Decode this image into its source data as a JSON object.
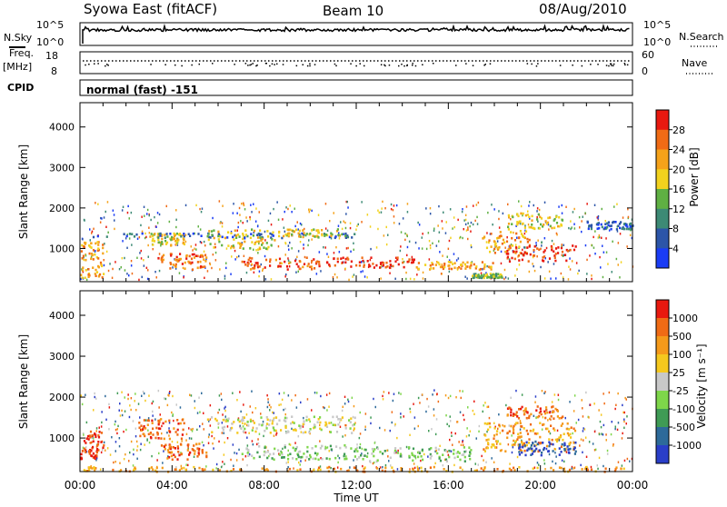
{
  "header": {
    "station": "Syowa East (fitACF)",
    "beam": "Beam 10",
    "date": "08/Aug/2010"
  },
  "top_panels": {
    "nsky_label": "N.Sky",
    "nsky_max": "10^5",
    "nsky_min": "10^0",
    "nsearch_label": "N.Search",
    "nsearch_max": "10^5",
    "nsearch_min": "10^0",
    "freq_label": "Freq.",
    "freq_unit": "[MHz]",
    "freq_max": "18",
    "freq_min": "8",
    "nave_label": "Nave",
    "nave_max": "60",
    "nave_min": "0",
    "cpid_label": "CPID",
    "cpid_value": "normal (fast) -151"
  },
  "chart_data": [
    {
      "type": "heatmap",
      "panel": "power",
      "ylabel": "Slant Range [km]",
      "xlabel": "Time UT",
      "xlim": [
        "00:00",
        "24:00"
      ],
      "ylim": [
        180,
        4600
      ],
      "x_ticks": [
        "00:00",
        "04:00",
        "08:00",
        "12:00",
        "16:00",
        "20:00",
        "00:00"
      ],
      "y_ticks": [
        1000,
        2000,
        3000,
        4000
      ],
      "colorbar": {
        "label": "Power [dB]",
        "ticks": [
          "4",
          "8",
          "12",
          "16",
          "20",
          "24",
          "28"
        ],
        "colors": [
          "#1a3cf5",
          "#2c55a8",
          "#3d8a75",
          "#5fb043",
          "#f2d21e",
          "#f5a21a",
          "#f06b15",
          "#e8190f"
        ]
      },
      "regions": [
        {
          "t0": 0.0,
          "t1": 1.0,
          "r0": 300,
          "r1": 1200,
          "level": 5
        },
        {
          "t0": 3.0,
          "t1": 4.5,
          "r0": 1100,
          "r1": 1400,
          "level": 4
        },
        {
          "t0": 3.3,
          "t1": 5.5,
          "r0": 500,
          "r1": 900,
          "level": 6
        },
        {
          "t0": 0.5,
          "t1": 12.0,
          "r0": 1280,
          "r1": 1400,
          "level": 1
        },
        {
          "t0": 5.5,
          "t1": 8.5,
          "r0": 1000,
          "r1": 1500,
          "level": 4
        },
        {
          "t0": 8.5,
          "t1": 11.5,
          "r0": 1300,
          "r1": 1500,
          "level": 4
        },
        {
          "t0": 7.0,
          "t1": 10.5,
          "r0": 500,
          "r1": 800,
          "level": 6
        },
        {
          "t0": 10.5,
          "t1": 14.5,
          "r0": 550,
          "r1": 800,
          "level": 7
        },
        {
          "t0": 14.5,
          "t1": 18.0,
          "r0": 500,
          "r1": 700,
          "level": 5
        },
        {
          "t0": 17.0,
          "t1": 18.3,
          "r0": 300,
          "r1": 400,
          "level": 3
        },
        {
          "t0": 17.5,
          "t1": 19.5,
          "r0": 900,
          "r1": 1500,
          "level": 5
        },
        {
          "t0": 18.5,
          "t1": 21.5,
          "r0": 700,
          "r1": 1100,
          "level": 7
        },
        {
          "t0": 18.5,
          "t1": 21.0,
          "r0": 1500,
          "r1": 1900,
          "level": 4
        },
        {
          "t0": 22.0,
          "t1": 24.0,
          "r0": 1500,
          "r1": 1700,
          "level": 1
        }
      ]
    },
    {
      "type": "heatmap",
      "panel": "velocity",
      "ylabel": "Slant Range [km]",
      "xlabel": "Time UT",
      "xlim": [
        "00:00",
        "24:00"
      ],
      "ylim": [
        180,
        4600
      ],
      "x_ticks": [
        "00:00",
        "04:00",
        "08:00",
        "12:00",
        "16:00",
        "20:00",
        "00:00"
      ],
      "y_ticks": [
        1000,
        2000,
        3000,
        4000
      ],
      "colorbar": {
        "label": "Velocity [m s⁻¹]",
        "ticks": [
          "1000",
          "500",
          "100",
          "25",
          "-25",
          "-100",
          "-500",
          "-1000"
        ],
        "colors": [
          "#2a3ec8",
          "#2d6a9a",
          "#3f9b55",
          "#7ed64a",
          "#c8c8c8",
          "#f5c81e",
          "#f59a1a",
          "#f06b15",
          "#e8190f"
        ]
      },
      "regions": [
        {
          "t0": 0.0,
          "t1": 1.0,
          "r0": 500,
          "r1": 1200,
          "level": 8
        },
        {
          "t0": 2.5,
          "t1": 4.5,
          "r0": 1000,
          "r1": 1500,
          "level": 7
        },
        {
          "t0": 3.5,
          "t1": 5.5,
          "r0": 500,
          "r1": 900,
          "level": 7
        },
        {
          "t0": 5.5,
          "t1": 12.0,
          "r0": 1150,
          "r1": 1550,
          "level": 4
        },
        {
          "t0": 7.0,
          "t1": 12.0,
          "r0": 500,
          "r1": 850,
          "level": 3
        },
        {
          "t0": 12.0,
          "t1": 17.0,
          "r0": 450,
          "r1": 800,
          "level": 3
        },
        {
          "t0": 17.5,
          "t1": 21.5,
          "r0": 700,
          "r1": 1400,
          "level": 6
        },
        {
          "t0": 19.0,
          "t1": 21.5,
          "r0": 600,
          "r1": 950,
          "level": 0
        },
        {
          "t0": 18.5,
          "t1": 21.0,
          "r0": 1500,
          "r1": 1800,
          "level": 7
        },
        {
          "t0": 0.0,
          "t1": 24.0,
          "r0": 200,
          "r1": 320,
          "level": 6
        }
      ]
    }
  ]
}
